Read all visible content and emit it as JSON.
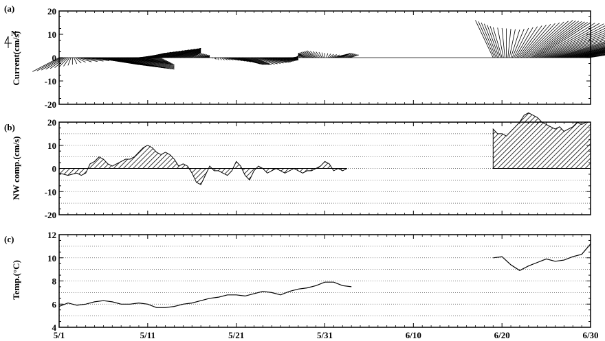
{
  "x_tick_labels": [
    "5/1",
    "5/11",
    "5/21",
    "5/31",
    "6/10",
    "6/20",
    "6/30"
  ],
  "panels": {
    "a": {
      "letter": "(a)",
      "ylabel": "Current(cm/s)",
      "north_label": "N",
      "yticks": [
        "20",
        "10",
        "0",
        "-10",
        "-20"
      ]
    },
    "b": {
      "letter": "(b)",
      "ylabel": "NW comp.(cm/s)",
      "yticks": [
        "20",
        "10",
        "0",
        "-10",
        "-20"
      ]
    },
    "c": {
      "letter": "(c)",
      "ylabel": "Temp.(°C)",
      "yticks": [
        "12",
        "10",
        "8",
        "6",
        "4"
      ]
    }
  },
  "chart_data": [
    {
      "type": "line",
      "panel": "a",
      "title": "",
      "xlabel": "",
      "ylabel": "Current(cm/s)",
      "ylim": [
        -20,
        20
      ],
      "xlim": [
        "5/1",
        "6/30"
      ],
      "note": "stick plot of current vectors",
      "segments": [
        {
          "x": [
            0,
            1,
            2,
            3,
            4,
            5,
            6,
            7,
            8,
            9,
            10,
            11,
            12,
            13,
            14,
            15,
            16,
            17,
            18,
            19,
            20,
            21,
            22,
            23,
            24,
            25,
            26,
            27,
            28,
            29,
            30,
            31,
            32,
            33
          ],
          "u": [
            -3,
            -1,
            1,
            4,
            5,
            6,
            7,
            6,
            4,
            2,
            2,
            3,
            4,
            3,
            2,
            1,
            1,
            0,
            0,
            1,
            2,
            2,
            2,
            3,
            3,
            2,
            1,
            0,
            -1,
            -1,
            0,
            1,
            1,
            1
          ],
          "v": [
            -6,
            -4,
            -2,
            -1,
            -3,
            -4,
            -5,
            -3,
            -1,
            1,
            2,
            3,
            4,
            4,
            3,
            2,
            1,
            0,
            -1,
            -1,
            -2,
            -3,
            -3,
            -2,
            -1,
            -1,
            0,
            1,
            2,
            3,
            2,
            1,
            2,
            1
          ]
        },
        {
          "x": [
            49,
            50,
            51,
            52,
            53,
            54,
            55,
            56,
            57,
            58,
            59,
            60
          ],
          "u": [
            -2,
            -1,
            1,
            3,
            5,
            6,
            8,
            9,
            9,
            8,
            6,
            4
          ],
          "v": [
            16,
            13,
            12,
            14,
            16,
            15,
            14,
            11,
            9,
            7,
            5,
            2
          ]
        }
      ]
    },
    {
      "type": "area",
      "panel": "b",
      "title": "",
      "xlabel": "",
      "ylabel": "NW comp.(cm/s)",
      "ylim": [
        -20,
        20
      ],
      "xlim": [
        "5/1",
        "6/30"
      ],
      "grid": true,
      "segments": [
        {
          "x": [
            0,
            0.5,
            1,
            1.5,
            2,
            2.5,
            3,
            3.5,
            4,
            4.5,
            5,
            5.5,
            6,
            6.5,
            7,
            7.5,
            8,
            8.5,
            9,
            9.5,
            10,
            10.5,
            11,
            11.5,
            12,
            12.5,
            13,
            13.5,
            14,
            14.5,
            15,
            15.5,
            16,
            16.5,
            17,
            17.5,
            18,
            18.5,
            19,
            19.5,
            20,
            20.5,
            21,
            21.5,
            22,
            22.5,
            23,
            23.5,
            24,
            24.5,
            25,
            25.5,
            26,
            26.5,
            27,
            27.5,
            28,
            28.5,
            29,
            29.5,
            30,
            30.5,
            31,
            31.5,
            32,
            32.5
          ],
          "y": [
            -2,
            -2.5,
            -3,
            -2.5,
            -2,
            -3,
            -2,
            2,
            3,
            5,
            4,
            2,
            1,
            2,
            3,
            4,
            4,
            5,
            7,
            9,
            10,
            9,
            7,
            6,
            7,
            6,
            4,
            1,
            2,
            1,
            -2,
            -6,
            -7,
            -3,
            1,
            -1,
            -1,
            -2,
            -3,
            -1,
            3,
            1,
            -3,
            -5,
            -1,
            1,
            0,
            -2,
            -1,
            0,
            -1,
            -2,
            -1,
            0,
            -1,
            -2,
            -1,
            -1,
            0,
            1,
            3,
            2,
            -1,
            0,
            -1,
            0
          ]
        },
        {
          "x": [
            49,
            49.5,
            50,
            50.5,
            51,
            51.5,
            52,
            52.5,
            53,
            53.5,
            54,
            54.5,
            55,
            55.5,
            56,
            56.5,
            57,
            57.5,
            58,
            58.5,
            59,
            59.5,
            60
          ],
          "y": [
            17,
            15,
            15,
            14,
            16,
            18,
            20,
            23,
            24,
            23,
            22,
            20,
            19,
            18,
            17,
            18,
            16,
            17,
            18,
            20,
            19,
            20,
            20
          ]
        }
      ]
    },
    {
      "type": "line",
      "panel": "c",
      "title": "",
      "xlabel": "",
      "ylabel": "Temp.(°C)",
      "ylim": [
        4,
        12
      ],
      "xlim": [
        "5/1",
        "6/30"
      ],
      "grid": true,
      "segments": [
        {
          "x": [
            0,
            1,
            2,
            3,
            4,
            5,
            6,
            7,
            8,
            9,
            10,
            11,
            12,
            13,
            14,
            15,
            16,
            17,
            18,
            19,
            20,
            21,
            22,
            23,
            24,
            25,
            26,
            27,
            28,
            29,
            30,
            31,
            32,
            33
          ],
          "y": [
            5.8,
            6.1,
            5.9,
            6.0,
            6.2,
            6.3,
            6.2,
            6.0,
            6.0,
            6.1,
            6.0,
            5.7,
            5.7,
            5.8,
            6.0,
            6.1,
            6.3,
            6.5,
            6.6,
            6.8,
            6.8,
            6.7,
            6.9,
            7.1,
            7.0,
            6.8,
            7.1,
            7.3,
            7.4,
            7.6,
            7.9,
            7.9,
            7.6,
            7.5
          ]
        },
        {
          "x": [
            49,
            50,
            51,
            52,
            53,
            54,
            55,
            56,
            57,
            58,
            59,
            60
          ],
          "y": [
            10.0,
            10.1,
            9.4,
            8.9,
            9.3,
            9.6,
            9.9,
            9.7,
            9.8,
            10.1,
            10.3,
            11.2
          ]
        }
      ]
    }
  ]
}
